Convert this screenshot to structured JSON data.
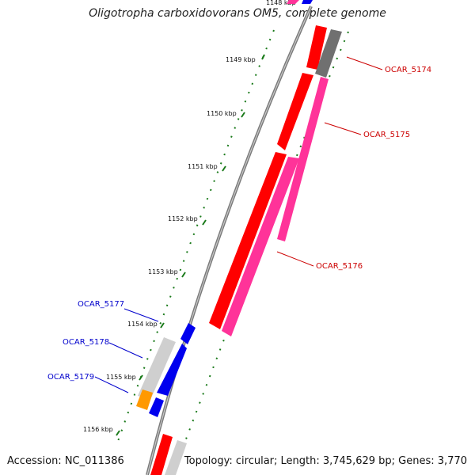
{
  "title": "Oligotropha carboxidovorans OM5, complete genome",
  "footer": {
    "accession": "Accession: NC_011386",
    "summary": "Topology: circular; Length: 3,745,629 bp; Genes: 3,770"
  },
  "colors": {
    "backbone": "#808080",
    "tick": "#1a7a1a",
    "forward_label": "#cc0000",
    "reverse_label": "#0000cc",
    "red_gene": "#ff0000",
    "pink_gene": "#ff3399",
    "blue_gene": "#0000ee",
    "gray_gene": "#cfcfcf",
    "dark_gray_gene": "#707070",
    "orange_gene": "#ff9900"
  },
  "ticks": [
    {
      "label": "1148 kbp"
    },
    {
      "label": "1149 kbp"
    },
    {
      "label": "1150 kbp"
    },
    {
      "label": "1151 kbp"
    },
    {
      "label": "1152 kbp"
    },
    {
      "label": "1153 kbp"
    },
    {
      "label": "1154 kbp"
    },
    {
      "label": "1155 kbp"
    },
    {
      "label": "1156 kbp"
    }
  ],
  "gene_labels": {
    "forward": [
      "OCAR_5174",
      "OCAR_5175",
      "OCAR_5176"
    ],
    "reverse": [
      "OCAR_5177",
      "OCAR_5178",
      "OCAR_5179"
    ]
  }
}
